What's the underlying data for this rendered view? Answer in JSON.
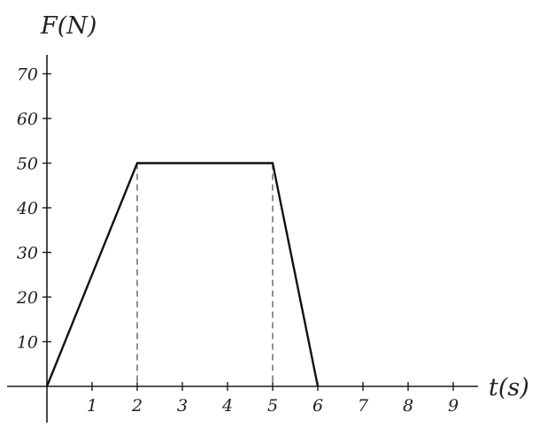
{
  "chart_data": {
    "type": "line",
    "xlabel": "t(s)",
    "ylabel": "F(N)",
    "xlim": [
      0,
      10
    ],
    "ylim": [
      0,
      75
    ],
    "x_ticks": [
      1,
      2,
      3,
      4,
      5,
      6,
      7,
      8,
      9
    ],
    "y_ticks": [
      10,
      20,
      30,
      40,
      50,
      60,
      70
    ],
    "grid": false,
    "series": [
      {
        "x": [
          0,
          2,
          5,
          6
        ],
        "y": [
          0,
          50,
          50,
          0
        ]
      }
    ],
    "guides": [
      {
        "x": 2,
        "y": 50
      },
      {
        "x": 5,
        "y": 50
      }
    ]
  }
}
